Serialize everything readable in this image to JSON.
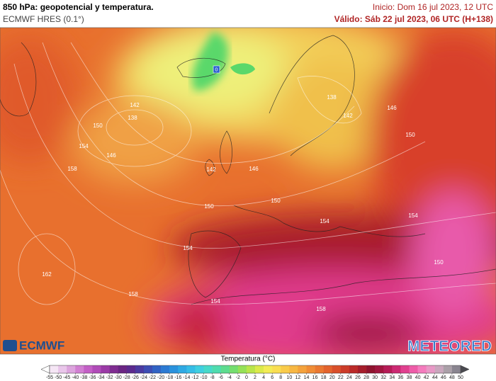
{
  "header": {
    "title": "850 hPa: geopotencial y temperatura.",
    "model": "ECMWF HRES (0.1°)",
    "init": "Inicio: Dom 16 jul 2023, 12 UTC",
    "valid": "Válido: Sáb 22 jul 2023, 06 UTC (H+138)"
  },
  "map": {
    "marker_label": "0",
    "contour_labels": [
      "142",
      "138",
      "150",
      "154",
      "146",
      "158",
      "142",
      "146",
      "138",
      "142",
      "146",
      "150",
      "150",
      "150",
      "154",
      "154",
      "154",
      "162",
      "158",
      "154",
      "158",
      "150"
    ]
  },
  "logos": {
    "left": "ECMWF",
    "right": "METEORED"
  },
  "colorbar": {
    "title": "Temperatura (°C)",
    "ticks": [
      -55,
      -50,
      -45,
      -40,
      -38,
      -36,
      -34,
      -32,
      -30,
      -28,
      -26,
      -24,
      -22,
      -20,
      -18,
      -16,
      -14,
      -12,
      -10,
      -8,
      -6,
      -4,
      -2,
      0,
      2,
      4,
      6,
      8,
      10,
      12,
      14,
      16,
      18,
      20,
      22,
      24,
      26,
      28,
      30,
      32,
      34,
      36,
      38,
      40,
      42,
      44,
      46,
      48,
      50
    ],
    "colors": [
      "#f5e6f5",
      "#e9c6ea",
      "#dca4dd",
      "#d17fd2",
      "#c35fc6",
      "#b04bb8",
      "#9a3aa6",
      "#7f2c91",
      "#6a2583",
      "#5b2a8e",
      "#4b3aa0",
      "#3d4db3",
      "#3163c4",
      "#2b7ad3",
      "#2a92dd",
      "#2fa9e3",
      "#36bde6",
      "#3fcfe0",
      "#47d9c9",
      "#4fdcae",
      "#5ddc8f",
      "#74de6f",
      "#95e157",
      "#b9e54a",
      "#dbea4a",
      "#f3ec55",
      "#f9de52",
      "#f9cb4a",
      "#f7b743",
      "#f4a23c",
      "#f08d36",
      "#ea7831",
      "#e3632d",
      "#d94f2a",
      "#cc3c29",
      "#bb2b29",
      "#a51d2b",
      "#8f132e",
      "#a0163f",
      "#b51c57",
      "#cc2a73",
      "#e0408f",
      "#ee5ca8",
      "#f47bbd",
      "#e898c6",
      "#c9a7bd",
      "#aaa0a8",
      "#8a8590"
    ]
  }
}
